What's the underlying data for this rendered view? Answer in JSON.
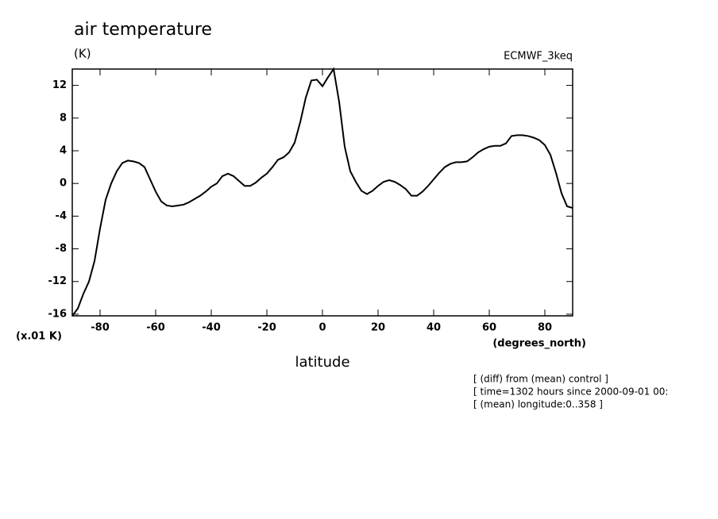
{
  "chart_data": {
    "type": "line",
    "title": "air temperature",
    "units": "(K)",
    "dataset": "ECMWF_3keq",
    "y_scale_label": "(x.01 K)",
    "x_units": "(degrees_north)",
    "xlabel": "latitude",
    "notes": [
      "[ (diff) from (mean) control ]",
      "[ time=1302 hours since 2000-09-01 00:",
      "[ (mean) longitude:0..358 ]"
    ],
    "color": "#000000",
    "x": [
      -90,
      -88,
      -86,
      -84,
      -82,
      -80,
      -78,
      -76,
      -74,
      -72,
      -70,
      -68,
      -66,
      -64,
      -62,
      -60,
      -58,
      -56,
      -54,
      -52,
      -50,
      -48,
      -46,
      -44,
      -42,
      -40,
      -38,
      -36,
      -34,
      -32,
      -30,
      -28,
      -26,
      -24,
      -22,
      -20,
      -18,
      -16,
      -14,
      -12,
      -10,
      -8,
      -6,
      -4,
      -2,
      0,
      2,
      4,
      6,
      8,
      10,
      12,
      14,
      16,
      18,
      20,
      22,
      24,
      26,
      28,
      30,
      32,
      34,
      36,
      38,
      40,
      42,
      44,
      46,
      48,
      50,
      52,
      54,
      56,
      58,
      60,
      62,
      64,
      66,
      68,
      70,
      72,
      74,
      76,
      78,
      80,
      82,
      84,
      86,
      88,
      90
    ],
    "values": [
      -16.2,
      -15.3,
      -13.5,
      -12,
      -9.5,
      -5.5,
      -2,
      0,
      1.5,
      2.5,
      2.8,
      2.7,
      2.5,
      2,
      0.5,
      -1,
      -2.2,
      -2.7,
      -2.8,
      -2.7,
      -2.6,
      -2.3,
      -1.9,
      -1.5,
      -1,
      -0.4,
      0,
      0.9,
      1.2,
      0.9,
      0.3,
      -0.3,
      -0.3,
      0.1,
      0.7,
      1.2,
      2,
      2.9,
      3.2,
      3.8,
      5,
      7.5,
      10.5,
      12.6,
      12.7,
      11.9,
      13,
      14,
      10,
      4.5,
      1.5,
      0.2,
      -0.9,
      -1.3,
      -0.9,
      -0.3,
      0.2,
      0.4,
      0.2,
      -0.2,
      -0.7,
      -1.5,
      -1.5,
      -1,
      -0.3,
      0.5,
      1.3,
      2,
      2.4,
      2.6,
      2.6,
      2.7,
      3.2,
      3.8,
      4.2,
      4.5,
      4.6,
      4.6,
      4.9,
      5.8,
      5.9,
      5.9,
      5.8,
      5.6,
      5.3,
      4.7,
      3.5,
      1.3,
      -1.2,
      -2.8,
      -3
    ],
    "xlim": [
      -90,
      90
    ],
    "ylim": [
      -16.2,
      14
    ],
    "xticks": [
      -80,
      -60,
      -40,
      -20,
      0,
      20,
      40,
      60,
      80
    ],
    "yticks": [
      -16,
      -12,
      -8,
      -4,
      0,
      4,
      8,
      12
    ]
  }
}
